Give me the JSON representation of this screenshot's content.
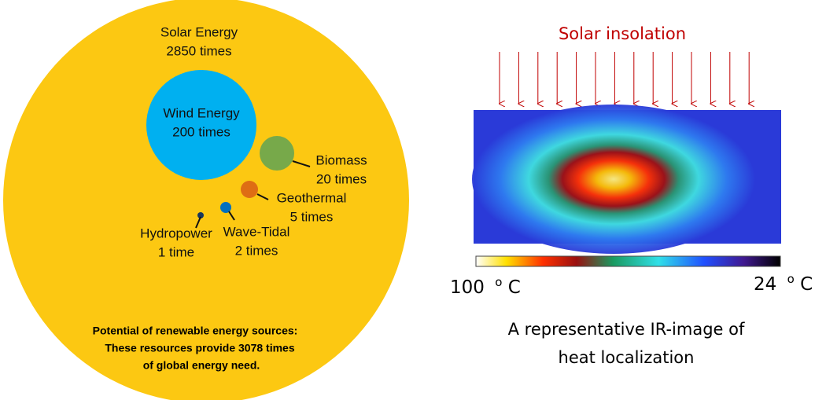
{
  "energy_diagram": {
    "solar": {
      "name": "Solar Energy",
      "amount": "2850 times"
    },
    "wind": {
      "name": "Wind Energy",
      "amount": "200 times"
    },
    "biomass": {
      "name": "Biomass",
      "amount": "20 times"
    },
    "geothermal": {
      "name": "Geothermal",
      "amount": "5 times"
    },
    "wave_tidal": {
      "name": "Wave-Tidal",
      "amount": "2 times"
    },
    "hydropower": {
      "name": "Hydropower",
      "amount": "1 time"
    },
    "caption": [
      "Potential of renewable energy sources:",
      "These resources provide 3078 times",
      "of global energy need."
    ]
  },
  "ir_image": {
    "title": "Solar insolation",
    "scale_left": {
      "number": "100",
      "sup": "o",
      "unit": "C"
    },
    "scale_right": {
      "number": "24",
      "sup": "o",
      "unit": "C"
    },
    "caption": [
      "A representative IR-image of",
      "heat localization"
    ]
  }
}
